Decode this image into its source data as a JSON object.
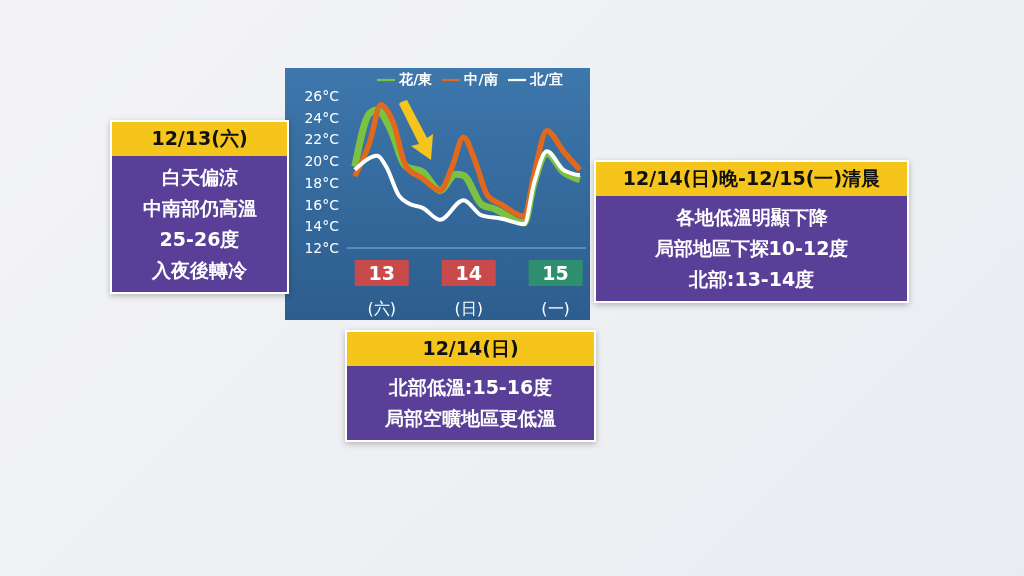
{
  "chart_data": {
    "type": "line",
    "series": [
      {
        "name": "花/東",
        "color": "#7cc242",
        "x": [
          12.69,
          12.86,
          12.95,
          13.09,
          13.28,
          13.47,
          13.67,
          13.85,
          13.94,
          14.15,
          14.3,
          14.64,
          14.75,
          14.9,
          15.09,
          15.28
        ],
        "values": [
          19.5,
          24.4,
          24.7,
          23.1,
          19.5,
          19.0,
          17.3,
          18.8,
          18.7,
          16.0,
          15.6,
          14.3,
          17.9,
          20.7,
          19.0,
          18.3
        ]
      },
      {
        "name": "中/南",
        "color": "#e2691c",
        "x": [
          12.69,
          12.86,
          12.99,
          13.13,
          13.28,
          13.47,
          13.67,
          13.81,
          13.94,
          14.07,
          14.22,
          14.38,
          14.64,
          14.75,
          14.9,
          15.09,
          15.28
        ],
        "values": [
          18.6,
          21.7,
          25.2,
          23.6,
          19.5,
          18.4,
          17.3,
          19.5,
          22.2,
          20.1,
          16.8,
          16.0,
          14.9,
          18.7,
          22.8,
          20.9,
          19.2
        ]
      },
      {
        "name": "北/宜",
        "color": "#ffffff",
        "x": [
          12.69,
          12.95,
          13.05,
          13.2,
          13.31,
          13.47,
          13.67,
          13.94,
          14.15,
          14.38,
          14.64,
          14.75,
          14.9,
          15.09,
          15.28
        ],
        "values": [
          19.2,
          20.5,
          19.5,
          16.8,
          16.1,
          15.7,
          14.6,
          16.4,
          15.0,
          14.7,
          14.2,
          17.9,
          20.9,
          19.2,
          18.7
        ]
      }
    ],
    "xlim": [
      12.6,
      15.35
    ],
    "xticks": [
      {
        "value": 13,
        "label": "13 (六)"
      },
      {
        "value": 14,
        "label": "14 (日)"
      },
      {
        "value": 15,
        "label": "15 (一)"
      }
    ],
    "ylim": [
      12,
      26
    ],
    "yticks": [
      {
        "value": 12,
        "label": "12°C"
      },
      {
        "value": 14,
        "label": "14°C"
      },
      {
        "value": 16,
        "label": "16°C"
      },
      {
        "value": 18,
        "label": "18°C"
      },
      {
        "value": 20,
        "label": "20°C"
      },
      {
        "value": 22,
        "label": "22°C"
      },
      {
        "value": 24,
        "label": "24°C"
      },
      {
        "value": 26,
        "label": "26°C"
      }
    ],
    "legend": "top",
    "marker": "none",
    "line_style": "solid",
    "annotations": [
      "12/13(六)",
      "白天偏涼",
      "中南部仍高溫",
      "25-26度",
      "入夜後轉冷",
      "12/14(日)晚-12/15(一)清晨",
      "各地低溫明顯下降",
      "局部地區下探10-12度",
      "北部:13-14度",
      "12/14(日)",
      "北部低溫:15-16度",
      "局部空曠地區更低溫"
    ]
  }
}
